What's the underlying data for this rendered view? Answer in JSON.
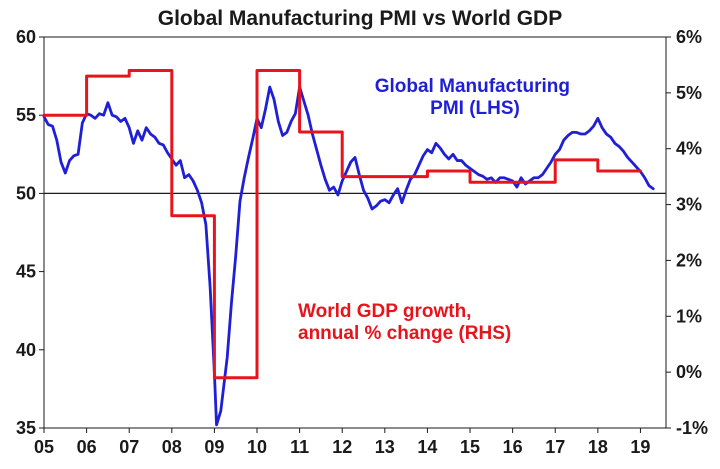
{
  "chart_data": {
    "type": "line",
    "title": "Global Manufacturing PMI vs World GDP",
    "x_ticks": [
      "05",
      "06",
      "07",
      "08",
      "09",
      "10",
      "11",
      "12",
      "13",
      "14",
      "15",
      "16",
      "17",
      "18",
      "19"
    ],
    "x_range": [
      2005,
      2019.6
    ],
    "y_left": {
      "range": [
        35,
        60
      ],
      "ticks": [
        "60",
        "55",
        "50",
        "45",
        "40",
        "35"
      ]
    },
    "y_right": {
      "range": [
        -1,
        6
      ],
      "ticks": [
        "6%",
        "5%",
        "4%",
        "3%",
        "2%",
        "1%",
        "0%",
        "-1%"
      ]
    },
    "reference_line": {
      "axis": "left",
      "value": 50
    },
    "series": [
      {
        "name": "Global Manufacturing PMI (LHS)",
        "axis": "left",
        "color": "#1f1fd6",
        "points": [
          [
            2005.0,
            54.9
          ],
          [
            2005.1,
            54.4
          ],
          [
            2005.2,
            54.3
          ],
          [
            2005.3,
            53.4
          ],
          [
            2005.4,
            52.0
          ],
          [
            2005.5,
            51.3
          ],
          [
            2005.6,
            52.1
          ],
          [
            2005.7,
            52.4
          ],
          [
            2005.8,
            52.5
          ],
          [
            2005.9,
            54.5
          ],
          [
            2006.0,
            55.1
          ],
          [
            2006.1,
            55.0
          ],
          [
            2006.2,
            54.8
          ],
          [
            2006.3,
            55.1
          ],
          [
            2006.4,
            55.0
          ],
          [
            2006.5,
            55.8
          ],
          [
            2006.6,
            55.0
          ],
          [
            2006.7,
            54.9
          ],
          [
            2006.8,
            54.6
          ],
          [
            2006.9,
            54.8
          ],
          [
            2007.0,
            54.2
          ],
          [
            2007.1,
            53.2
          ],
          [
            2007.2,
            54.0
          ],
          [
            2007.3,
            53.4
          ],
          [
            2007.4,
            54.2
          ],
          [
            2007.5,
            53.8
          ],
          [
            2007.6,
            53.6
          ],
          [
            2007.7,
            53.2
          ],
          [
            2007.8,
            53.1
          ],
          [
            2007.9,
            52.6
          ],
          [
            2008.0,
            52.2
          ],
          [
            2008.1,
            51.8
          ],
          [
            2008.2,
            52.1
          ],
          [
            2008.3,
            51.0
          ],
          [
            2008.4,
            51.2
          ],
          [
            2008.5,
            50.8
          ],
          [
            2008.6,
            50.2
          ],
          [
            2008.7,
            49.4
          ],
          [
            2008.8,
            48.0
          ],
          [
            2008.9,
            44.0
          ],
          [
            2009.0,
            38.5
          ],
          [
            2009.05,
            35.2
          ],
          [
            2009.15,
            36.1
          ],
          [
            2009.3,
            39.5
          ],
          [
            2009.4,
            43.0
          ],
          [
            2009.5,
            46.0
          ],
          [
            2009.6,
            49.5
          ],
          [
            2009.7,
            51.0
          ],
          [
            2009.8,
            52.3
          ],
          [
            2009.9,
            53.5
          ],
          [
            2010.0,
            54.8
          ],
          [
            2010.1,
            54.2
          ],
          [
            2010.2,
            55.4
          ],
          [
            2010.3,
            56.8
          ],
          [
            2010.4,
            56.0
          ],
          [
            2010.5,
            54.6
          ],
          [
            2010.6,
            53.7
          ],
          [
            2010.7,
            53.9
          ],
          [
            2010.8,
            54.6
          ],
          [
            2010.9,
            55.1
          ],
          [
            2011.0,
            56.8
          ],
          [
            2011.1,
            55.9
          ],
          [
            2011.2,
            55.0
          ],
          [
            2011.3,
            53.8
          ],
          [
            2011.4,
            52.8
          ],
          [
            2011.5,
            51.8
          ],
          [
            2011.6,
            50.9
          ],
          [
            2011.7,
            50.2
          ],
          [
            2011.8,
            50.4
          ],
          [
            2011.9,
            49.9
          ],
          [
            2012.0,
            50.8
          ],
          [
            2012.1,
            51.4
          ],
          [
            2012.2,
            52.0
          ],
          [
            2012.3,
            52.3
          ],
          [
            2012.4,
            51.2
          ],
          [
            2012.5,
            50.2
          ],
          [
            2012.6,
            49.7
          ],
          [
            2012.7,
            49.0
          ],
          [
            2012.8,
            49.2
          ],
          [
            2012.9,
            49.5
          ],
          [
            2013.0,
            49.6
          ],
          [
            2013.1,
            49.4
          ],
          [
            2013.2,
            49.9
          ],
          [
            2013.3,
            50.3
          ],
          [
            2013.4,
            49.4
          ],
          [
            2013.5,
            50.2
          ],
          [
            2013.6,
            50.9
          ],
          [
            2013.7,
            51.2
          ],
          [
            2013.8,
            51.8
          ],
          [
            2013.9,
            52.4
          ],
          [
            2014.0,
            52.8
          ],
          [
            2014.1,
            52.6
          ],
          [
            2014.2,
            53.2
          ],
          [
            2014.3,
            52.9
          ],
          [
            2014.4,
            52.5
          ],
          [
            2014.5,
            52.2
          ],
          [
            2014.6,
            52.5
          ],
          [
            2014.7,
            52.1
          ],
          [
            2014.8,
            52.1
          ],
          [
            2014.9,
            51.8
          ],
          [
            2015.0,
            51.6
          ],
          [
            2015.1,
            51.4
          ],
          [
            2015.2,
            51.2
          ],
          [
            2015.3,
            51.1
          ],
          [
            2015.4,
            50.9
          ],
          [
            2015.5,
            51.0
          ],
          [
            2015.6,
            50.7
          ],
          [
            2015.7,
            51.0
          ],
          [
            2015.8,
            51.0
          ],
          [
            2015.9,
            50.9
          ],
          [
            2016.0,
            50.8
          ],
          [
            2016.1,
            50.4
          ],
          [
            2016.2,
            51.0
          ],
          [
            2016.3,
            50.6
          ],
          [
            2016.4,
            50.8
          ],
          [
            2016.5,
            51.0
          ],
          [
            2016.6,
            51.0
          ],
          [
            2016.7,
            51.2
          ],
          [
            2016.8,
            51.6
          ],
          [
            2016.9,
            52.0
          ],
          [
            2017.0,
            52.5
          ],
          [
            2017.1,
            52.8
          ],
          [
            2017.2,
            53.4
          ],
          [
            2017.3,
            53.7
          ],
          [
            2017.4,
            53.9
          ],
          [
            2017.5,
            53.9
          ],
          [
            2017.6,
            53.8
          ],
          [
            2017.7,
            53.8
          ],
          [
            2017.8,
            54.0
          ],
          [
            2017.9,
            54.3
          ],
          [
            2018.0,
            54.8
          ],
          [
            2018.1,
            54.2
          ],
          [
            2018.2,
            53.8
          ],
          [
            2018.3,
            53.6
          ],
          [
            2018.4,
            53.2
          ],
          [
            2018.5,
            53.0
          ],
          [
            2018.6,
            52.7
          ],
          [
            2018.7,
            52.3
          ],
          [
            2018.8,
            52.0
          ],
          [
            2018.9,
            51.7
          ],
          [
            2019.0,
            51.4
          ],
          [
            2019.1,
            51.0
          ],
          [
            2019.2,
            50.5
          ],
          [
            2019.3,
            50.3
          ]
        ]
      },
      {
        "name": "World GDP growth, annual % change (RHS)",
        "axis": "right",
        "color": "#e8141b",
        "points": [
          [
            2005.0,
            4.6
          ],
          [
            2006.0,
            4.6
          ],
          [
            2006.0,
            5.3
          ],
          [
            2007.0,
            5.3
          ],
          [
            2007.0,
            5.4
          ],
          [
            2008.0,
            5.4
          ],
          [
            2008.0,
            2.8
          ],
          [
            2009.0,
            2.8
          ],
          [
            2009.0,
            -0.1
          ],
          [
            2010.0,
            -0.1
          ],
          [
            2010.0,
            5.4
          ],
          [
            2011.0,
            5.4
          ],
          [
            2011.0,
            4.3
          ],
          [
            2012.0,
            4.3
          ],
          [
            2012.0,
            3.5
          ],
          [
            2014.0,
            3.5
          ],
          [
            2014.0,
            3.6
          ],
          [
            2015.0,
            3.6
          ],
          [
            2015.0,
            3.4
          ],
          [
            2017.0,
            3.4
          ],
          [
            2017.0,
            3.8
          ],
          [
            2018.0,
            3.8
          ],
          [
            2018.0,
            3.6
          ],
          [
            2019.0,
            3.6
          ]
        ]
      }
    ],
    "annotations": {
      "pmi_label": [
        "Global Manufacturing",
        "PMI (LHS)"
      ],
      "gdp_label": [
        "World GDP growth,",
        "annual % change (RHS)"
      ]
    },
    "legend": "none",
    "grid": false
  }
}
